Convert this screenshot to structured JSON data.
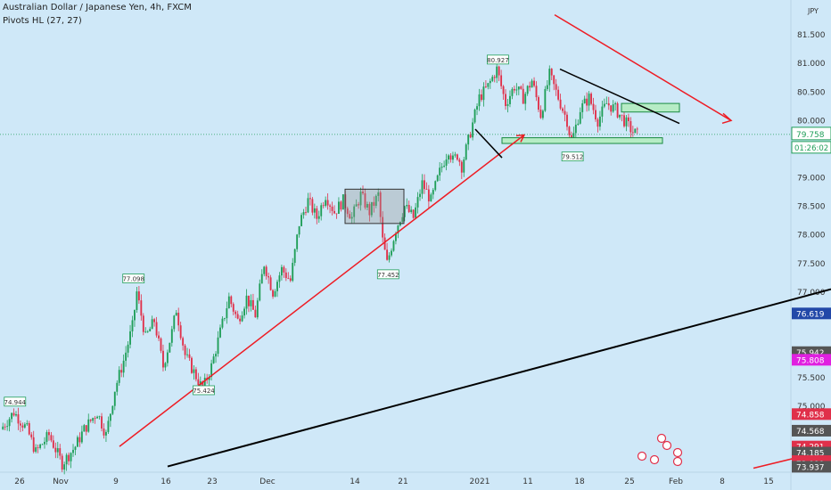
{
  "chart_data": {
    "type": "candlestick",
    "title": "Australian Dollar / Japanese Yen, 4h, FXCM",
    "indicator": "Pivots HL (27, 27)",
    "currency": "JPY",
    "ylim": [
      73.85,
      82.0
    ],
    "y_ticks": [
      "81.500",
      "81.000",
      "80.500",
      "80.000",
      "79.000",
      "78.500",
      "78.000",
      "77.500",
      "77.000",
      "75.500",
      "75.000"
    ],
    "x_ticks": [
      "26",
      "Nov",
      "9",
      "16",
      "23",
      "Dec",
      "14",
      "21",
      "2021",
      "11",
      "18",
      "25",
      "Feb",
      "8",
      "15"
    ],
    "price_path": [
      [
        0,
        74.6
      ],
      [
        6,
        74.9
      ],
      [
        12,
        74.6
      ],
      [
        16,
        74.2
      ],
      [
        22,
        74.5
      ],
      [
        28,
        74.0
      ],
      [
        34,
        74.3
      ],
      [
        38,
        74.6
      ],
      [
        44,
        74.9
      ],
      [
        48,
        74.5
      ],
      [
        52,
        75.3
      ],
      [
        56,
        75.8
      ],
      [
        60,
        76.4
      ],
      [
        62,
        77.0
      ],
      [
        66,
        76.2
      ],
      [
        70,
        76.5
      ],
      [
        74,
        75.7
      ],
      [
        78,
        76.3
      ],
      [
        80,
        76.7
      ],
      [
        84,
        75.9
      ],
      [
        88,
        75.6
      ],
      [
        92,
        75.3
      ],
      [
        96,
        75.7
      ],
      [
        100,
        76.3
      ],
      [
        104,
        76.9
      ],
      [
        108,
        76.5
      ],
      [
        112,
        76.9
      ],
      [
        116,
        76.6
      ],
      [
        120,
        77.5
      ],
      [
        124,
        77.0
      ],
      [
        128,
        77.4
      ],
      [
        132,
        77.2
      ],
      [
        136,
        78.2
      ],
      [
        140,
        78.6
      ],
      [
        144,
        78.3
      ],
      [
        148,
        78.7
      ],
      [
        152,
        78.4
      ],
      [
        156,
        78.6
      ],
      [
        160,
        78.3
      ],
      [
        164,
        78.7
      ],
      [
        168,
        78.4
      ],
      [
        172,
        78.7
      ],
      [
        174,
        77.9
      ],
      [
        176,
        77.5
      ],
      [
        180,
        78.1
      ],
      [
        184,
        78.5
      ],
      [
        188,
        78.3
      ],
      [
        192,
        78.9
      ],
      [
        196,
        78.6
      ],
      [
        200,
        79.1
      ],
      [
        204,
        79.5
      ],
      [
        206,
        79.3
      ],
      [
        208,
        79.4
      ],
      [
        210,
        79.2
      ],
      [
        214,
        79.8
      ],
      [
        218,
        80.4
      ],
      [
        222,
        80.6
      ],
      [
        226,
        80.9
      ],
      [
        230,
        80.3
      ],
      [
        234,
        80.6
      ],
      [
        238,
        80.4
      ],
      [
        242,
        80.7
      ],
      [
        246,
        80.1
      ],
      [
        250,
        80.8
      ],
      [
        254,
        80.4
      ],
      [
        258,
        80.0
      ],
      [
        260,
        79.6
      ],
      [
        264,
        80.2
      ],
      [
        268,
        80.4
      ],
      [
        272,
        80.0
      ],
      [
        276,
        80.3
      ],
      [
        280,
        80.2
      ],
      [
        284,
        80.0
      ],
      [
        288,
        79.8
      ],
      [
        290,
        79.76
      ]
    ],
    "candle_count": 290,
    "last_price": {
      "label": "79.758",
      "color": "#1f9e58"
    },
    "countdown": "01:26:02",
    "right_labels": [
      {
        "text": "76.619",
        "color": "#2248a8"
      },
      {
        "text": "75.942",
        "color": "#555555"
      },
      {
        "text": "75.808",
        "color": "#e020e0"
      },
      {
        "text": "74.858",
        "color": "#e0304a"
      },
      {
        "text": "74.568",
        "color": "#555555"
      },
      {
        "text": "74.291",
        "color": "#e0304a"
      },
      {
        "text": "74.185",
        "color": "#555555"
      },
      {
        "text": "74.036",
        "color": "#e0304a"
      },
      {
        "text": "73.999",
        "color": "#e0304a"
      },
      {
        "text": "73.937",
        "color": "#555555"
      }
    ],
    "pivots": [
      {
        "text": "74.944",
        "i": 6,
        "price": 74.944,
        "pos": "high"
      },
      {
        "text": "77.098",
        "i": 60,
        "price": 77.098,
        "pos": "high"
      },
      {
        "text": "75.424",
        "i": 92,
        "price": 75.424,
        "pos": "low"
      },
      {
        "text": "77.452",
        "i": 176,
        "price": 77.452,
        "pos": "low"
      },
      {
        "text": "80.927",
        "i": 226,
        "price": 80.927,
        "pos": "high"
      },
      {
        "text": "79.512",
        "i": 260,
        "price": 79.512,
        "pos": "low"
      }
    ],
    "drawings": {
      "black_trendline": {
        "from": [
          188,
          73.95
        ],
        "to": [
          932,
          77.05
        ]
      },
      "red_trendline_lower": {
        "from": [
          134,
          74.3
        ],
        "to": [
          588,
          79.75
        ]
      },
      "red_arrow": {
        "from": [
          622,
          81.85
        ],
        "to": [
          820,
          80.0
        ]
      },
      "red_line_small": {
        "from": [
          845,
          73.92
        ],
        "to": [
          932,
          74.25
        ]
      },
      "triangle_upper": {
        "from": [
          628,
          80.9
        ],
        "to": [
          762,
          79.95
        ]
      },
      "breakout_line": {
        "from": [
          533,
          79.85
        ],
        "to": [
          563,
          79.35
        ]
      },
      "box_range": {
        "x0": 387,
        "x1": 453,
        "y_top": 78.8,
        "y_bot": 78.2
      },
      "zone_top": {
        "x0": 697,
        "x1": 762,
        "y_top": 80.3,
        "y_bot": 80.15
      },
      "zone_bottom": {
        "x0": 563,
        "x1": 743,
        "y_top": 79.7,
        "y_bot": 79.6
      }
    },
    "colors": {
      "up": "#1f9e58",
      "down": "#e0304a",
      "background": "#cfe8f8",
      "trend": "#000000",
      "red_line": "#ee1c24",
      "zone": "#b6ecc5"
    }
  }
}
